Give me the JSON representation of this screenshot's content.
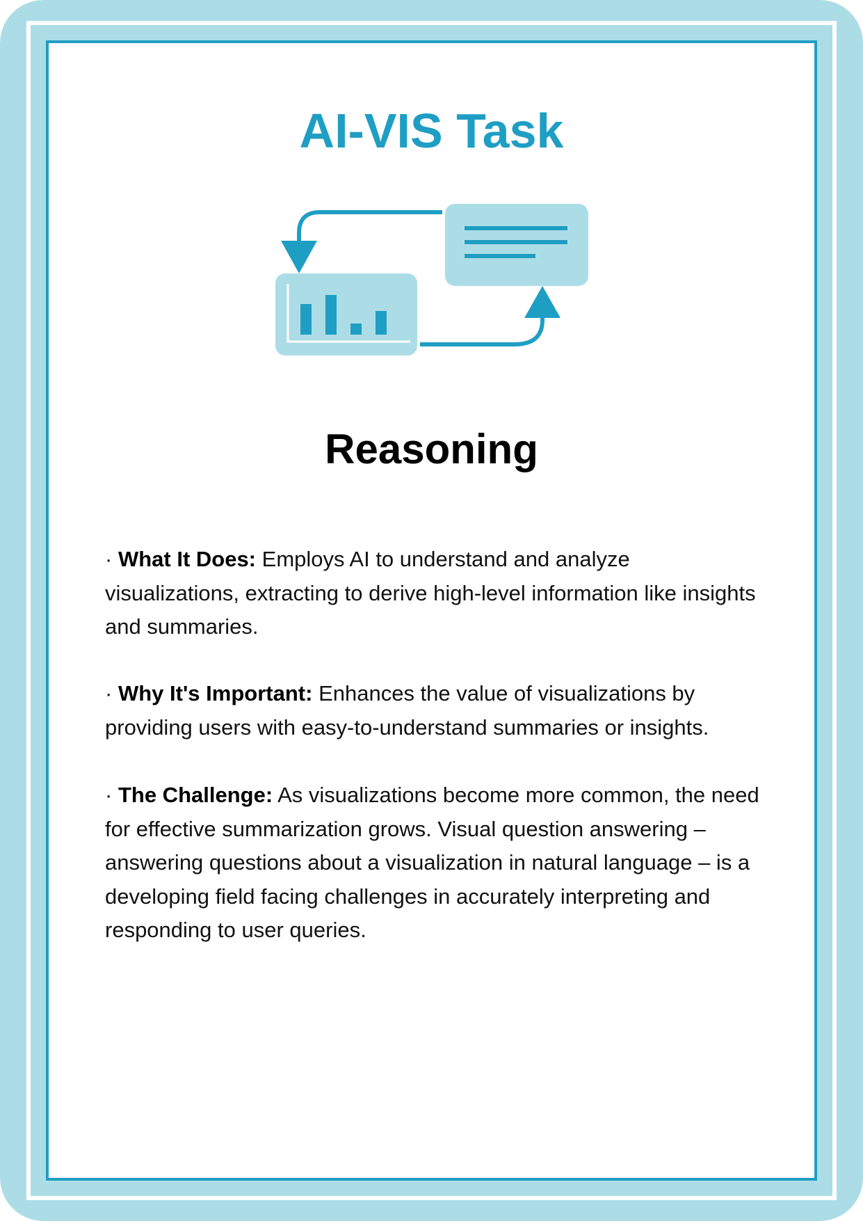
{
  "card": {
    "title": "AI-VIS Task",
    "icon": "chart-to-text-cycle-icon",
    "subtitle": "Reasoning",
    "colors": {
      "accent": "#1f9ec4",
      "light": "#acdde7"
    },
    "sections": [
      {
        "bullet": "·",
        "label": "What It Does:",
        "text": "Employs AI to understand and analyze visualizations, extracting to derive high-level information like insights and summaries."
      },
      {
        "bullet": "·",
        "label": "Why It's Important:",
        "text": "Enhances the value of visualizations by providing users with easy-to-understand summaries or insights."
      },
      {
        "bullet": "·",
        "label": "The Challenge:",
        "text": "As visualizations become more common, the need for effective summarization grows. Visual question answering – answering questions about a visualization in natural language – is a developing field facing challenges in accurately interpreting and responding to user queries."
      }
    ]
  }
}
